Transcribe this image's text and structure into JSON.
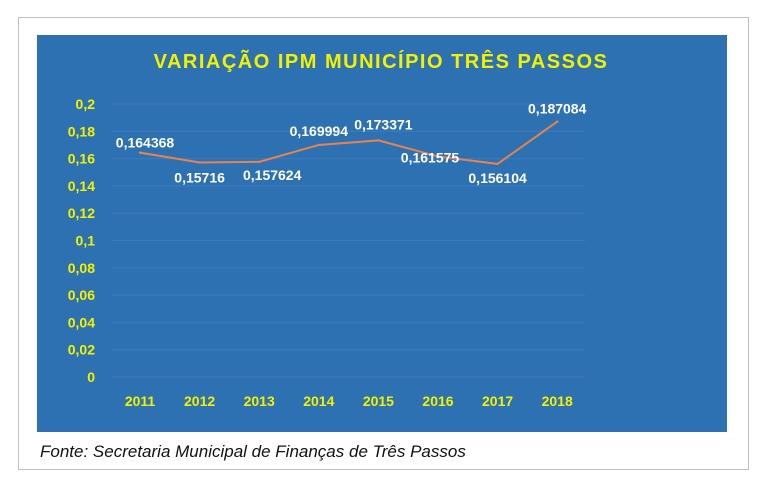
{
  "chart_data": {
    "type": "line",
    "title": "VARIAÇÃO IPM MUNICÍPIO TRÊS PASSOS",
    "categories": [
      "2011",
      "2012",
      "2013",
      "2014",
      "2015",
      "2016",
      "2017",
      "2018"
    ],
    "series": [
      {
        "values": [
          0.164368,
          0.15716,
          0.157624,
          0.169994,
          0.173371,
          0.161575,
          0.156104,
          0.187084
        ]
      }
    ],
    "data_labels": [
      "0,164368",
      "0,15716",
      "0,157624",
      "0,169994",
      "0,173371",
      "0,161575",
      "0,156104",
      "0,187084"
    ],
    "yticks": [
      "0",
      "0,02",
      "0,04",
      "0,06",
      "0,08",
      "0,1",
      "0,12",
      "0,14",
      "0,16",
      "0,18",
      "0,2"
    ],
    "ylim": [
      0,
      0.2
    ],
    "grid": true,
    "colors": {
      "background": "#2e71b3",
      "line": "#e8834a",
      "axis_text": "#f2f200",
      "label_text": "#ffffff",
      "grid": "#3d7cbc"
    }
  },
  "source": "Fonte: Secretaria Municipal de Finanças de Três Passos"
}
